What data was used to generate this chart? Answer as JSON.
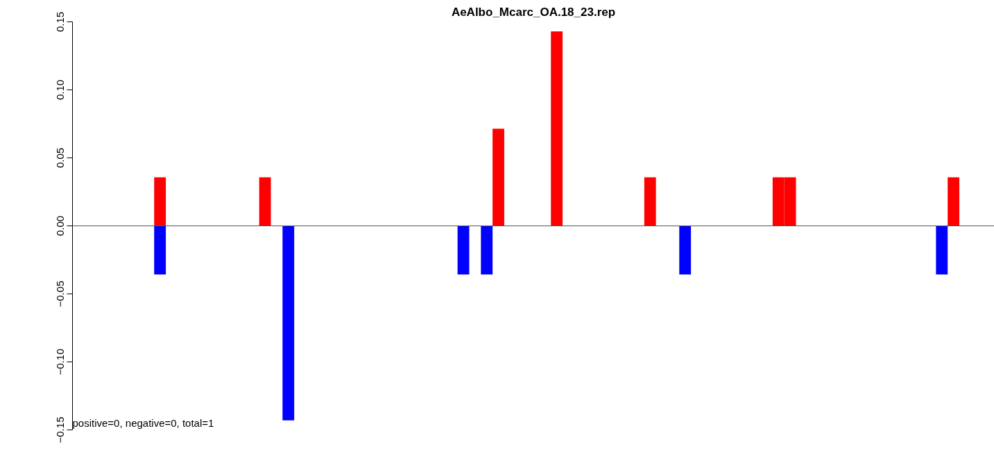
{
  "chart_data": {
    "type": "bar",
    "title": "AeAlbo_Mcarc_OA.18_23.rep",
    "categories": [
      null,
      null,
      null,
      null,
      null,
      null,
      null,
      null,
      null,
      null,
      null,
      null,
      null,
      null,
      null,
      null,
      null,
      null,
      null,
      null,
      null,
      null,
      null,
      null,
      null,
      null,
      null,
      null,
      null,
      null,
      null,
      null,
      null,
      null,
      null,
      null,
      null,
      null,
      null,
      null,
      null,
      null,
      null,
      null,
      null,
      null,
      null,
      null,
      null,
      null,
      null,
      null,
      null,
      null,
      null,
      null,
      null,
      null,
      null,
      null,
      null,
      null,
      null,
      null,
      null,
      null,
      null,
      null,
      null,
      null,
      null,
      null,
      null,
      null,
      null,
      null,
      null,
      null,
      null
    ],
    "series": [
      {
        "color": "#ff0000",
        "values": [
          null,
          null,
          null,
          null,
          null,
          null,
          null,
          0.0357,
          null,
          null,
          null,
          null,
          null,
          null,
          null,
          null,
          0.0357,
          null,
          null,
          null,
          null,
          null,
          null,
          null,
          null,
          null,
          null,
          null,
          null,
          null,
          null,
          null,
          null,
          null,
          null,
          null,
          0.0714,
          null,
          null,
          null,
          null,
          0.143,
          null,
          null,
          null,
          null,
          null,
          null,
          null,
          0.0357,
          null,
          null,
          null,
          null,
          null,
          null,
          null,
          null,
          null,
          null,
          0.0357,
          0.0357,
          null,
          null,
          null,
          null,
          null,
          null,
          null,
          null,
          null,
          null,
          null,
          null,
          null,
          0.0357,
          null,
          null,
          null
        ]
      },
      {
        "color": "#0000ff",
        "values": [
          null,
          null,
          null,
          null,
          null,
          null,
          null,
          -0.0357,
          null,
          null,
          null,
          null,
          null,
          null,
          null,
          null,
          null,
          null,
          -0.143,
          null,
          null,
          null,
          null,
          null,
          null,
          null,
          null,
          null,
          null,
          null,
          null,
          null,
          null,
          -0.0357,
          null,
          -0.0357,
          null,
          null,
          null,
          null,
          null,
          null,
          null,
          null,
          null,
          null,
          null,
          null,
          null,
          null,
          null,
          null,
          -0.0357,
          null,
          null,
          null,
          null,
          null,
          null,
          null,
          null,
          null,
          null,
          null,
          null,
          null,
          null,
          null,
          null,
          null,
          null,
          null,
          null,
          null,
          -0.0357,
          null,
          null,
          null,
          null
        ]
      }
    ],
    "ylim": [
      -0.15,
      0.15
    ],
    "yticks": [
      {
        "value": -0.15,
        "label": "−0.15"
      },
      {
        "value": -0.1,
        "label": "−0.10"
      },
      {
        "value": -0.05,
        "label": "−0.05"
      },
      {
        "value": 0,
        "label": "0.00"
      },
      {
        "value": 0.05,
        "label": "0.05"
      },
      {
        "value": 0.1,
        "label": "0.10"
      },
      {
        "value": 0.15,
        "label": "0.15"
      }
    ],
    "ref_lines": [
      {
        "axis": "y",
        "value": 0,
        "color": "#555555"
      }
    ],
    "annotations": [
      "positive=0, negative=0, total=1"
    ],
    "grid": false,
    "tick_labels": "y"
  }
}
